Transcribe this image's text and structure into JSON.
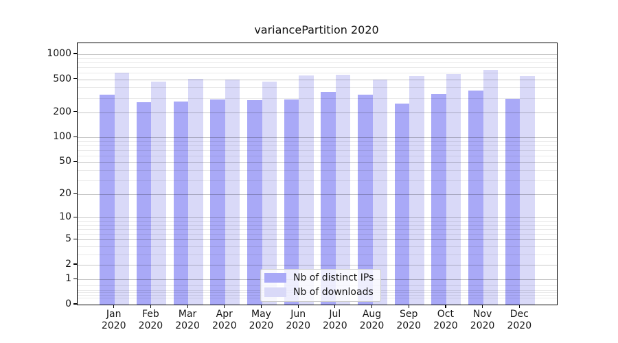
{
  "title": "variancePartition 2020",
  "chart_data": {
    "type": "bar",
    "title": "variancePartition 2020",
    "categories": [
      "Jan 2020",
      "Feb 2020",
      "Mar 2020",
      "Apr 2020",
      "May 2020",
      "Jun 2020",
      "Jul 2020",
      "Aug 2020",
      "Sep 2020",
      "Oct 2020",
      "Nov 2020",
      "Dec 2020"
    ],
    "x_tick_month_labels": [
      "Jan",
      "Feb",
      "Mar",
      "Apr",
      "May",
      "Jun",
      "Jul",
      "Aug",
      "Sep",
      "Oct",
      "Nov",
      "Dec"
    ],
    "x_tick_year_label": "2020",
    "series": [
      {
        "name": "Nb of distinct IPs",
        "color": "#a9a9f7",
        "values": [
          325,
          263,
          272,
          284,
          279,
          287,
          351,
          326,
          254,
          333,
          366,
          293
        ]
      },
      {
        "name": "Nb of downloads",
        "color": "#d9d9f8",
        "values": [
          606,
          471,
          508,
          497,
          466,
          553,
          563,
          497,
          545,
          578,
          646,
          545
        ]
      }
    ],
    "yscale": "log1p",
    "ylabel": "",
    "xlabel": "",
    "y_major_ticks": [
      0,
      1,
      2,
      5,
      10,
      20,
      50,
      100,
      200,
      500,
      1000
    ],
    "y_minor_ticks": [
      0.2,
      0.3,
      0.4,
      0.5,
      0.7,
      3,
      4,
      6,
      7,
      8,
      9,
      30,
      40,
      60,
      70,
      80,
      90,
      300,
      400,
      600,
      700,
      800,
      900
    ],
    "ylim": [
      0,
      1355
    ],
    "grid": "horizontal, major and minor, drawn over bars",
    "legend_position": "lower center inside plot",
    "colors": {
      "grid_major": "rgba(0,0,0,0.22)",
      "grid_minor": "rgba(0,0,0,0.085)",
      "axis": "#000000",
      "text": "#151515",
      "background": "#ffffff"
    }
  }
}
